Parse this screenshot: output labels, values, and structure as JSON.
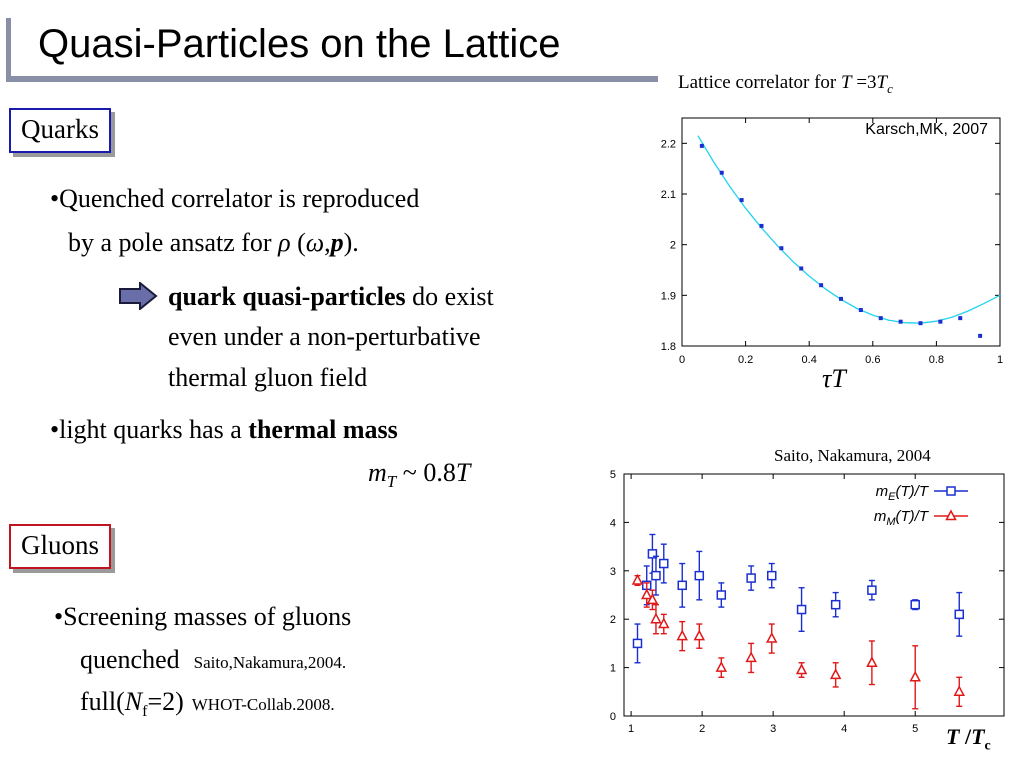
{
  "slide": {
    "title": "Quasi-Particles on the Lattice"
  },
  "quarks": {
    "box_label": "Quarks",
    "bullet1_line1": "•Quenched correlator is reproduced",
    "bullet1_line2_pre": "by a pole ansatz for ",
    "bullet1_rho": "ρ",
    "bullet1_paren_open": " (",
    "bullet1_omega": "ω",
    "bullet1_comma": ",",
    "bullet1_p": "p",
    "bullet1_paren_close": ").",
    "arrow_bold": "quark quasi-particles",
    "arrow_line1_rest": " do exist",
    "arrow_line2": "even under a non-perturbative",
    "arrow_line3": "thermal gluon field",
    "bullet2_pre": "•light quarks has a ",
    "bullet2_bold": "thermal mass",
    "mass_m": "m",
    "mass_sub": "T",
    "mass_rest": " ~ 0.8",
    "mass_T": "T"
  },
  "gluons": {
    "box_label": "Gluons",
    "bullet1": "•Screening masses of gluons",
    "line2_main": "quenched",
    "line2_ref": "Saito,Nakamura,2004.",
    "line3_full": "full(",
    "line3_N": "N",
    "line3_sub": "f",
    "line3_rest": "=2)",
    "line3_ref": "WHOT-Collab.2008."
  },
  "colors": {
    "quarks_border": "#1a1ab0",
    "gluons_border": "#c0141e",
    "arrow_fill": "#6a6ea8",
    "fit_curve": "#22d3f0",
    "points_blue": "#1a2fd0",
    "mE": "#1a2fd0",
    "mM": "#e01818"
  },
  "chart_data": [
    {
      "type": "scatter",
      "caption_pre": "Lattice correlator for ",
      "caption_T": "T",
      "caption_eq": " =3",
      "caption_Tc": "T",
      "caption_c": "c",
      "annotation": "Karsch,MK, 2007",
      "xlabel_tau": "τ",
      "xlabel_T": "T",
      "xlim": [
        0,
        1
      ],
      "ylim": [
        1.8,
        2.25
      ],
      "xticks": [
        "0",
        "0.2",
        "0.4",
        "0.6",
        "0.8",
        "1"
      ],
      "yticks": [
        "1.8",
        "1.9",
        "2",
        "2.1",
        "2.2"
      ],
      "grid": false,
      "series": [
        {
          "x": [
            0.0625,
            0.125,
            0.1875,
            0.25,
            0.3125,
            0.375,
            0.4375,
            0.5,
            0.5625,
            0.625,
            0.6875,
            0.75,
            0.8125,
            0.875,
            0.9375
          ],
          "y": [
            2.195,
            2.142,
            2.088,
            2.037,
            1.993,
            1.953,
            1.92,
            1.893,
            1.871,
            1.855,
            1.848,
            1.845,
            1.848,
            1.855,
            1.82
          ]
        }
      ],
      "fit_curve": {
        "x": [
          0.05,
          0.1,
          0.15,
          0.2,
          0.25,
          0.3,
          0.35,
          0.4,
          0.45,
          0.5,
          0.55,
          0.6,
          0.65,
          0.7,
          0.75,
          0.8,
          0.85,
          0.9,
          0.95,
          1.0
        ],
        "y": [
          2.215,
          2.163,
          2.115,
          2.072,
          2.033,
          1.998,
          1.966,
          1.938,
          1.913,
          1.892,
          1.874,
          1.861,
          1.851,
          1.846,
          1.845,
          1.849,
          1.857,
          1.869,
          1.884,
          1.9
        ]
      }
    },
    {
      "type": "scatter",
      "caption": "Saito, Nakamura, 2004",
      "xlabel_T": "T",
      "xlabel_slash": " /",
      "xlabel_Tc": "T",
      "xlabel_c": "c",
      "xlim": [
        0.9,
        6.25
      ],
      "ylim": [
        0,
        5
      ],
      "xticks": [
        "1",
        "2",
        "3",
        "4",
        "5"
      ],
      "yticks": [
        "0",
        "1",
        "2",
        "3",
        "4",
        "5"
      ],
      "grid": false,
      "legend": {
        "placement": "top-right",
        "mE_m": "m",
        "mE_sub": "E",
        "mE_rest": "(T)/T",
        "mM_m": "m",
        "mM_sub": "M",
        "mM_rest": "(T)/T"
      },
      "series": [
        {
          "name": "mE(T)/T",
          "marker": "square",
          "x": [
            1.09,
            1.22,
            1.3,
            1.35,
            1.46,
            1.72,
            1.96,
            2.27,
            2.69,
            2.98,
            3.4,
            3.88,
            4.39,
            5.0,
            5.62
          ],
          "y": [
            1.5,
            2.7,
            3.35,
            2.9,
            3.15,
            2.7,
            2.9,
            2.5,
            2.85,
            2.9,
            2.2,
            2.3,
            2.6,
            2.3,
            2.1
          ],
          "err": [
            0.4,
            0.4,
            0.4,
            0.4,
            0.4,
            0.45,
            0.5,
            0.25,
            0.25,
            0.25,
            0.45,
            0.25,
            0.2,
            0.1,
            0.45
          ]
        },
        {
          "name": "mM(T)/T",
          "marker": "triangle",
          "x": [
            1.09,
            1.22,
            1.3,
            1.35,
            1.46,
            1.72,
            1.96,
            2.27,
            2.69,
            2.98,
            3.4,
            3.88,
            4.39,
            5.0,
            5.62
          ],
          "y": [
            2.8,
            2.5,
            2.4,
            2.0,
            1.9,
            1.65,
            1.65,
            1.0,
            1.2,
            1.6,
            0.95,
            0.85,
            1.1,
            0.8,
            0.5
          ],
          "err": [
            0.1,
            0.25,
            0.2,
            0.3,
            0.2,
            0.3,
            0.25,
            0.2,
            0.3,
            0.3,
            0.15,
            0.25,
            0.45,
            0.65,
            0.3
          ]
        }
      ]
    }
  ]
}
